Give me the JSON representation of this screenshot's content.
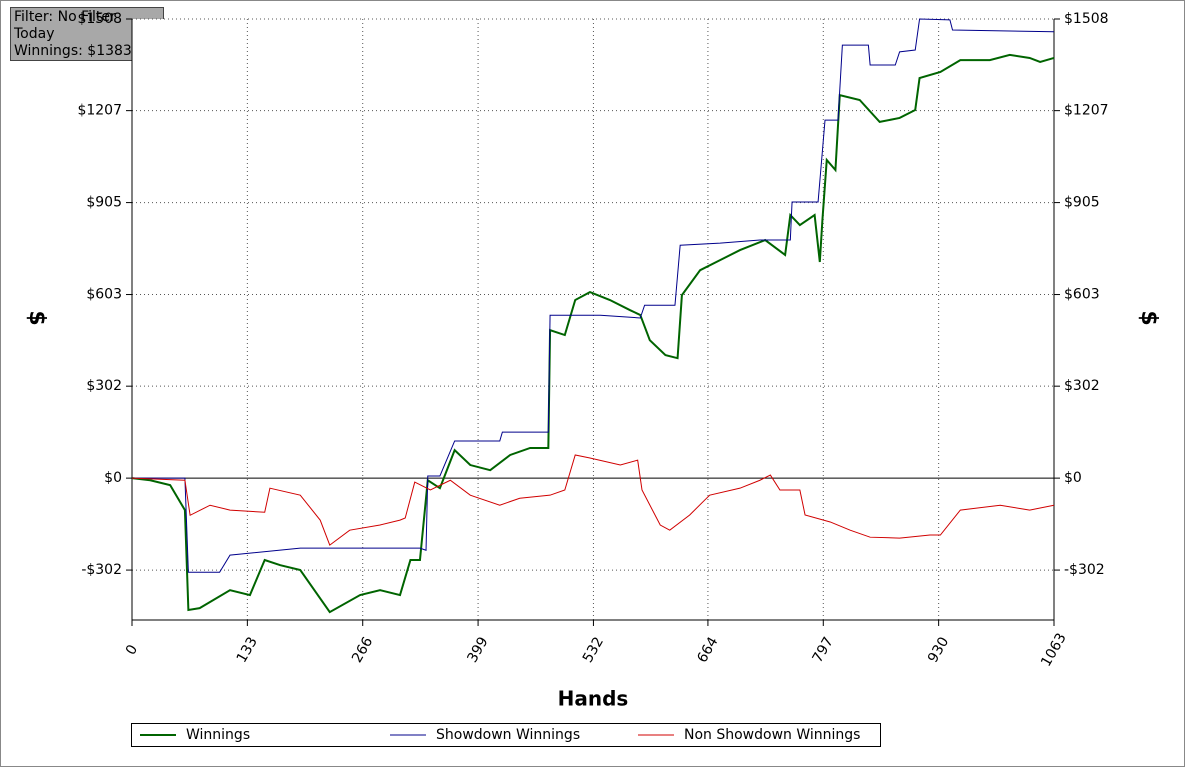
{
  "info": [
    "Filter: No Filter",
    "Today",
    "Winnings: $1383.48"
  ],
  "chart_data": {
    "type": "line",
    "x_label": "Hands",
    "y_label": "$",
    "y2_label": "$",
    "xlim": [
      0,
      1063
    ],
    "xticks": [
      0,
      133,
      266,
      399,
      532,
      664,
      797,
      930,
      1063
    ],
    "ylim": [
      -466,
      1508
    ],
    "yticks": [
      {
        "value": -302,
        "label": "-$302"
      },
      {
        "value": 0,
        "label": "$0"
      },
      {
        "value": 302,
        "label": "$302"
      },
      {
        "value": 603,
        "label": "$603"
      },
      {
        "value": 905,
        "label": "$905"
      },
      {
        "value": 1207,
        "label": "$1207"
      },
      {
        "value": 1508,
        "label": "$1508"
      }
    ],
    "grid": true,
    "series": [
      {
        "name": "Winnings",
        "color": "#006400",
        "x": [
          0,
          21,
          44,
          61,
          65,
          78,
          113,
          136,
          153,
          171,
          194,
          228,
          263,
          286,
          309,
          321,
          332,
          341,
          355,
          372,
          390,
          413,
          436,
          459,
          480,
          482,
          499,
          511,
          528,
          551,
          574,
          586,
          597,
          615,
          629,
          634,
          655,
          678,
          701,
          730,
          753,
          759,
          770,
          787,
          793,
          796,
          801,
          811,
          816,
          839,
          862,
          885,
          903,
          908,
          932,
          955,
          989,
          1012,
          1035,
          1047,
          1063
        ],
        "values": [
          0,
          -7,
          -23,
          -105,
          -433,
          -427,
          -368,
          -384,
          -269,
          -286,
          -302,
          -440,
          -384,
          -368,
          -384,
          -269,
          -269,
          -7,
          -33,
          92,
          43,
          26,
          76,
          99,
          99,
          486,
          470,
          585,
          611,
          585,
          552,
          536,
          453,
          404,
          394,
          601,
          683,
          716,
          749,
          782,
          733,
          864,
          831,
          864,
          710,
          848,
          1045,
          1012,
          1258,
          1242,
          1170,
          1183,
          1209,
          1314,
          1334,
          1373,
          1373,
          1390,
          1380,
          1367,
          1380
        ]
      },
      {
        "name": "Showdown Winnings",
        "color": "#00008b",
        "x": [
          0,
          61,
          65,
          101,
          113,
          194,
          332,
          339,
          341,
          355,
          372,
          424,
          427,
          480,
          482,
          540,
          586,
          591,
          626,
          632,
          678,
          724,
          759,
          761,
          791,
          799,
          814,
          819,
          849,
          851,
          880,
          885,
          903,
          908,
          943,
          946,
          1063
        ],
        "values": [
          0,
          0,
          -309,
          -309,
          -253,
          -230,
          -230,
          -237,
          7,
          7,
          122,
          122,
          151,
          151,
          535,
          535,
          526,
          568,
          568,
          765,
          772,
          782,
          782,
          907,
          907,
          1176,
          1176,
          1422,
          1422,
          1357,
          1357,
          1400,
          1406,
          1508,
          1505,
          1472,
          1466
        ]
      },
      {
        "name": "Non Showdown Winnings",
        "color": "#d00000",
        "x": [
          0,
          61,
          67,
          90,
          113,
          153,
          159,
          194,
          217,
          228,
          251,
          286,
          309,
          315,
          326,
          344,
          367,
          390,
          424,
          447,
          482,
          499,
          511,
          528,
          563,
          583,
          588,
          609,
          620,
          643,
          666,
          701,
          724,
          736,
          747,
          770,
          776,
          805,
          828,
          851,
          885,
          920,
          932,
          955,
          1001,
          1035,
          1063
        ],
        "values": [
          0,
          -7,
          -122,
          -89,
          -105,
          -112,
          -33,
          -56,
          -138,
          -220,
          -171,
          -154,
          -138,
          -131,
          -13,
          -39,
          -7,
          -56,
          -89,
          -66,
          -56,
          -39,
          76,
          66,
          43,
          59,
          -39,
          -154,
          -171,
          -121,
          -56,
          -33,
          -7,
          10,
          -39,
          -39,
          -121,
          -144,
          -171,
          -194,
          -197,
          -187,
          -187,
          -105,
          -89,
          -105,
          -89
        ]
      }
    ]
  }
}
